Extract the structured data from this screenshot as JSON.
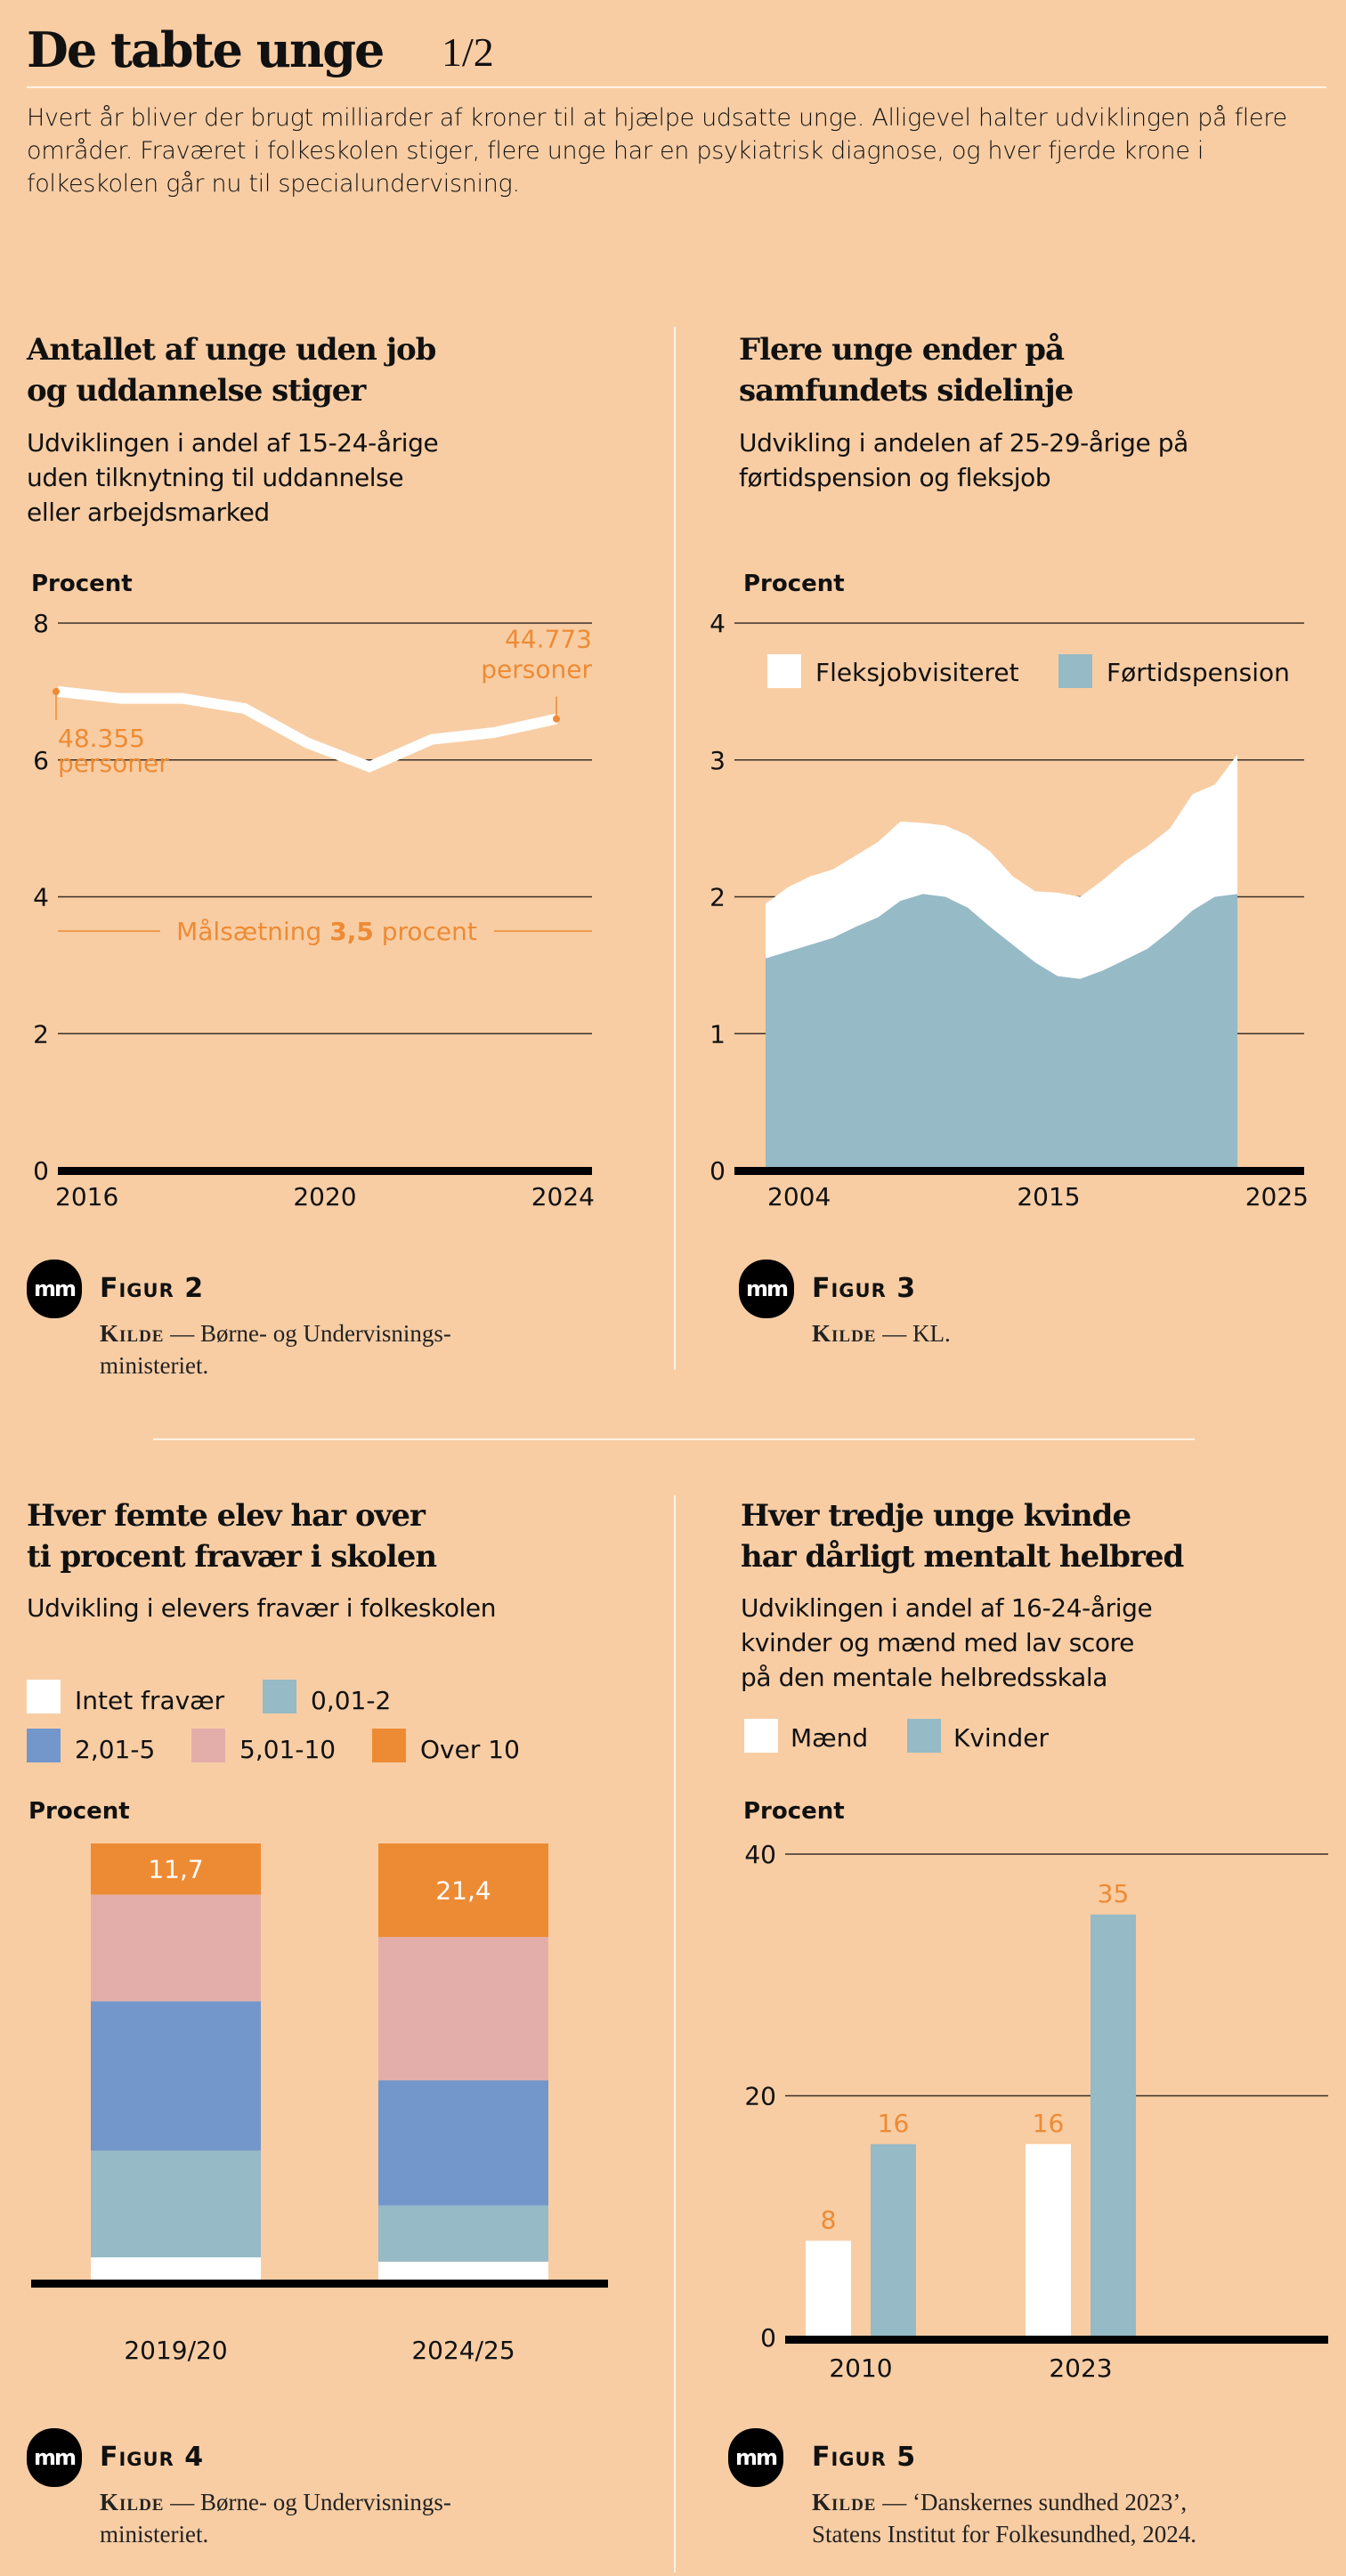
{
  "header": {
    "title": "De tabte unge",
    "page_indicator": "1/2",
    "intro": "Hvert år bliver der brugt milliarder af kroner til at hjælpe udsatte unge. Alligevel halter udviklingen på flere områder. Fraværet i folkeskolen stiger, flere unge har en psykiatrisk diagnose, og hver fjerde krone i folkeskolen går nu til specialundervisning."
  },
  "colors": {
    "background": "#f8cda4",
    "accent_orange": "#ed8b34",
    "white": "#ffffff",
    "teal": "#96bac6",
    "blue": "#7396cb",
    "pink": "#e3aeaa",
    "axis": "#000000"
  },
  "logo_text": "mm",
  "figures": {
    "fig2": {
      "title_line1": "Antallet af unge uden job",
      "title_line2": "og uddannelse stiger",
      "subtitle_line1": "Udviklingen i andel af 15-24-årige",
      "subtitle_line2": "uden tilknytning til uddannelse",
      "subtitle_line3": "eller arbejdsmarked",
      "figure_label": "Figur 2",
      "kilde_label": "Kilde",
      "kilde_text_line1": "— Børne- og Undervisnings-",
      "kilde_text_line2": "ministeriet."
    },
    "fig3": {
      "title_line1": "Flere unge ender på",
      "title_line2": "samfundets sidelinje",
      "subtitle_line1": "Udvikling i andelen af 25-29-årige på",
      "subtitle_line2": "førtidspension og fleksjob",
      "figure_label": "Figur 3",
      "kilde_label": "Kilde",
      "kilde_text_line1": "— KL."
    },
    "fig4": {
      "title_line1": "Hver femte elev har over",
      "title_line2": "ti procent fravær i skolen",
      "subtitle_line1": "Udvikling i elevers fravær i folkeskolen",
      "figure_label": "Figur 4",
      "kilde_label": "Kilde",
      "kilde_text_line1": "— Børne- og Undervisnings-",
      "kilde_text_line2": "ministeriet."
    },
    "fig5": {
      "title_line1": "Hver tredje unge kvinde",
      "title_line2": "har dårligt mentalt helbred",
      "subtitle_line1": "Udviklingen i andel af 16-24-årige",
      "subtitle_line2": "kvinder og mænd med lav score",
      "subtitle_line3": "på den mentale helbredsskala",
      "figure_label": "Figur 5",
      "kilde_label": "Kilde",
      "kilde_text_line1": "— ‘Danskernes sundhed 2023’,",
      "kilde_text_line2": "Statens Institut for Folkesundhed, 2024."
    }
  },
  "chart_data": [
    {
      "id": "fig2",
      "type": "line",
      "ylabel": "Procent",
      "xlabel": "",
      "x": [
        2016,
        2017,
        2018,
        2019,
        2020,
        2021,
        2022,
        2023,
        2024
      ],
      "series": [
        {
          "name": "Andel 15-24-årige uden job og uddannelse",
          "values": [
            7.0,
            6.9,
            6.9,
            6.75,
            6.25,
            5.9,
            6.3,
            6.4,
            6.6
          ],
          "color": "#ffffff"
        }
      ],
      "xticks": [
        "2016",
        "2020",
        "2024"
      ],
      "yticks": [
        "0",
        "2",
        "4",
        "6",
        "8"
      ],
      "ylim": [
        0,
        8
      ],
      "xlim": [
        2016,
        2024
      ],
      "grid": true,
      "annotations": [
        {
          "x": 2016,
          "y": 7.0,
          "line1": "48.355",
          "line2": "personer"
        },
        {
          "x": 2024,
          "y": 6.6,
          "line1": "44.773",
          "line2": "personer"
        }
      ],
      "target_line": {
        "value": 3.5,
        "prefix": "Målsætning",
        "value_label": "3,5",
        "suffix": "procent"
      }
    },
    {
      "id": "fig3",
      "type": "area",
      "stacked": true,
      "ylabel": "Procent",
      "x": [
        2004,
        2005,
        2006,
        2007,
        2008,
        2009,
        2010,
        2011,
        2012,
        2013,
        2014,
        2015,
        2016,
        2017,
        2018,
        2019,
        2020,
        2021,
        2022,
        2023,
        2024,
        2025
      ],
      "series": [
        {
          "name": "Førtidspension",
          "color": "#96bac6",
          "values": [
            1.55,
            1.6,
            1.65,
            1.7,
            1.78,
            1.85,
            1.97,
            2.02,
            2.0,
            1.92,
            1.78,
            1.65,
            1.52,
            1.42,
            1.4,
            1.46,
            1.54,
            1.62,
            1.75,
            1.9,
            2.0,
            2.02
          ]
        },
        {
          "name": "Fleksjobvisiteret",
          "color": "#ffffff",
          "values": [
            0.4,
            0.47,
            0.5,
            0.5,
            0.52,
            0.55,
            0.58,
            0.52,
            0.52,
            0.53,
            0.55,
            0.5,
            0.52,
            0.61,
            0.6,
            0.66,
            0.72,
            0.75,
            0.75,
            0.85,
            0.82,
            1.02
          ]
        }
      ],
      "legend": [
        "Fleksjobvisiteret",
        "Førtidspension"
      ],
      "xticks": [
        "2004",
        "2015",
        "2025"
      ],
      "yticks": [
        "0",
        "1",
        "2",
        "3",
        "4"
      ],
      "ylim": [
        0,
        4
      ],
      "xlim": [
        2004,
        2025
      ],
      "grid": true
    },
    {
      "id": "fig4",
      "type": "bar",
      "stacked": true,
      "ylabel": "Procent",
      "categories": [
        "2019/20",
        "2024/25"
      ],
      "series": [
        {
          "name": "Intet fravær",
          "color": "#ffffff",
          "values": [
            5.3,
            4.3
          ]
        },
        {
          "name": "0,01-2",
          "color": "#96bac6",
          "values": [
            24.4,
            12.9
          ]
        },
        {
          "name": "2,01-5",
          "color": "#7396cb",
          "values": [
            34.2,
            28.6
          ]
        },
        {
          "name": "5,01-10",
          "color": "#e3aeaa",
          "values": [
            24.4,
            32.8
          ]
        },
        {
          "name": "Over 10",
          "color": "#ed8b34",
          "values": [
            11.7,
            21.4
          ]
        }
      ],
      "data_labels": [
        "11,7",
        "21,4"
      ],
      "ylim": [
        0,
        100
      ],
      "legend": [
        "Intet fravær",
        "0,01-2",
        "2,01-5",
        "5,01-10",
        "Over 10"
      ]
    },
    {
      "id": "fig5",
      "type": "bar",
      "ylabel": "Procent",
      "categories": [
        "2010",
        "2023"
      ],
      "series": [
        {
          "name": "Mænd",
          "color": "#ffffff",
          "values": [
            8,
            16
          ]
        },
        {
          "name": "Kvinder",
          "color": "#96bac6",
          "values": [
            16,
            35
          ]
        }
      ],
      "data_labels": [
        [
          "8",
          "16"
        ],
        [
          "16",
          "35"
        ]
      ],
      "yticks": [
        "0",
        "20",
        "40"
      ],
      "ylim": [
        0,
        40
      ],
      "legend": [
        "Mænd",
        "Kvinder"
      ],
      "grid": true
    }
  ]
}
